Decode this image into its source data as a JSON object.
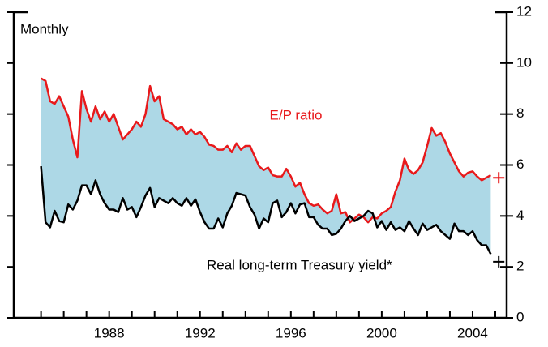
{
  "chart_data": {
    "type": "line",
    "subtitle": "Monthly",
    "x": [
      1985,
      1985.2,
      1985.4,
      1985.6,
      1985.8,
      1986,
      1986.2,
      1986.4,
      1986.6,
      1986.8,
      1987,
      1987.2,
      1987.4,
      1987.6,
      1987.8,
      1988,
      1988.2,
      1988.4,
      1988.6,
      1988.8,
      1989,
      1989.2,
      1989.4,
      1989.6,
      1989.8,
      1990,
      1990.2,
      1990.4,
      1990.6,
      1990.8,
      1991,
      1991.2,
      1991.4,
      1991.6,
      1991.8,
      1992,
      1992.2,
      1992.4,
      1992.6,
      1992.8,
      1993,
      1993.2,
      1993.4,
      1993.6,
      1993.8,
      1994,
      1994.2,
      1994.4,
      1994.6,
      1994.8,
      1995,
      1995.2,
      1995.4,
      1995.6,
      1995.8,
      1996,
      1996.2,
      1996.4,
      1996.6,
      1996.8,
      1997,
      1997.2,
      1997.4,
      1997.6,
      1997.8,
      1998,
      1998.2,
      1998.4,
      1998.6,
      1998.8,
      1999,
      1999.2,
      1999.4,
      1999.6,
      1999.8,
      2000,
      2000.2,
      2000.4,
      2000.6,
      2000.8,
      2001,
      2001.2,
      2001.4,
      2001.6,
      2001.8,
      2002,
      2002.2,
      2002.4,
      2002.6,
      2002.8,
      2003,
      2003.2,
      2003.4,
      2003.6,
      2003.8,
      2004,
      2004.2,
      2004.4,
      2004.6,
      2004.8
    ],
    "series": [
      {
        "name": "E/P ratio",
        "color": "#e8191b",
        "values": [
          9.4,
          9.3,
          8.5,
          8.4,
          8.7,
          8.3,
          7.9,
          7.0,
          6.3,
          8.9,
          8.2,
          7.7,
          8.3,
          7.8,
          8.1,
          7.7,
          8.0,
          7.5,
          7.0,
          7.2,
          7.4,
          7.7,
          7.5,
          8.0,
          9.1,
          8.5,
          8.7,
          7.8,
          7.7,
          7.6,
          7.4,
          7.5,
          7.2,
          7.4,
          7.2,
          7.3,
          7.1,
          6.8,
          6.75,
          6.6,
          6.6,
          6.75,
          6.5,
          6.85,
          6.6,
          6.75,
          6.75,
          6.35,
          5.95,
          5.8,
          5.9,
          5.6,
          5.55,
          5.55,
          5.85,
          5.55,
          5.15,
          5.3,
          4.85,
          4.5,
          4.4,
          4.45,
          4.25,
          4.1,
          4.2,
          4.85,
          4.1,
          4.15,
          3.75,
          3.9,
          4.05,
          3.95,
          3.75,
          3.95,
          3.9,
          4.1,
          4.2,
          4.35,
          4.95,
          5.4,
          6.25,
          5.8,
          5.65,
          5.8,
          6.1,
          6.75,
          7.45,
          7.15,
          7.25,
          6.9,
          6.45,
          6.1,
          5.75,
          5.55,
          5.7,
          5.75,
          5.55,
          5.4,
          5.5,
          5.6
        ],
        "latest_x": 2005.15,
        "latest_value": 5.5
      },
      {
        "name": "Real long-term Treasury yield*",
        "color": "#000000",
        "values": [
          5.95,
          3.75,
          3.55,
          4.2,
          3.8,
          3.75,
          4.45,
          4.25,
          4.6,
          5.2,
          5.2,
          4.85,
          5.4,
          4.85,
          4.5,
          4.25,
          4.25,
          4.15,
          4.7,
          4.25,
          4.35,
          3.95,
          4.35,
          4.8,
          5.1,
          4.35,
          4.7,
          4.6,
          4.5,
          4.7,
          4.5,
          4.4,
          4.7,
          4.4,
          4.65,
          4.15,
          3.75,
          3.5,
          3.5,
          3.9,
          3.55,
          4.1,
          4.4,
          4.9,
          4.85,
          4.8,
          4.35,
          4.05,
          3.5,
          3.9,
          3.75,
          4.5,
          4.6,
          3.95,
          4.15,
          4.5,
          4.1,
          4.45,
          4.5,
          3.95,
          3.95,
          3.65,
          3.5,
          3.5,
          3.25,
          3.3,
          3.5,
          3.8,
          4.0,
          3.8,
          3.9,
          4.0,
          4.2,
          4.1,
          3.55,
          3.8,
          3.45,
          3.75,
          3.45,
          3.55,
          3.4,
          3.8,
          3.5,
          3.25,
          3.7,
          3.45,
          3.55,
          3.65,
          3.4,
          3.25,
          3.1,
          3.7,
          3.4,
          3.4,
          3.25,
          3.4,
          3.05,
          2.85,
          2.85,
          2.5
        ],
        "latest_x": 2005.15,
        "latest_value": 2.2
      }
    ],
    "fill_color": "#add8e6",
    "xlim": [
      1983.8,
      2005.5
    ],
    "xticks": [
      1988,
      1992,
      1996,
      2000,
      2004
    ],
    "x_minor_ticks": [
      1985,
      1986,
      1987,
      1988,
      1989,
      1990,
      1991,
      1992,
      1993,
      1994,
      1995,
      1996,
      1997,
      1998,
      1999,
      2000,
      2001,
      2002,
      2003,
      2004,
      2005
    ],
    "ylim": [
      0,
      12
    ],
    "yticks": [
      0,
      2,
      4,
      6,
      8,
      10,
      12
    ]
  }
}
